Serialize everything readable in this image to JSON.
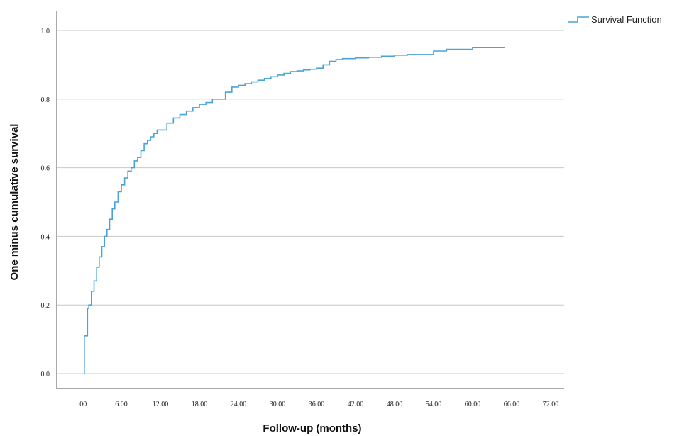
{
  "chart_data": {
    "type": "line",
    "title": "",
    "xlabel": "Follow-up (months)",
    "ylabel": "One minus cumulative survival",
    "xlim": [
      0,
      72
    ],
    "ylim": [
      0,
      1
    ],
    "x_ticks": [
      ".00",
      "6.00",
      "12.00",
      "18.00",
      "24.00",
      "30.00",
      "36.00",
      "42.00",
      "48.00",
      "54.00",
      "60.00",
      "66.00",
      "72.00"
    ],
    "y_ticks": [
      "0.0",
      "0.2",
      "0.4",
      "0.6",
      "0.8",
      "1.0"
    ],
    "grid": "horizontal",
    "legend_position": "top-right",
    "step": true,
    "series": [
      {
        "name": "Survival Function",
        "color": "#4aa3d4",
        "x": [
          0.3,
          0.3,
          0.8,
          1.0,
          1.4,
          1.8,
          2.2,
          2.6,
          3.0,
          3.4,
          3.8,
          4.2,
          4.6,
          5.0,
          5.5,
          6.0,
          6.5,
          7.0,
          7.5,
          8.0,
          8.5,
          9.0,
          9.5,
          10.0,
          10.5,
          11.0,
          11.5,
          12.0,
          13.0,
          14.0,
          15.0,
          16.0,
          17.0,
          18.0,
          19.0,
          20.0,
          21.0,
          22.0,
          23.0,
          24.0,
          25.0,
          26.0,
          27.0,
          28.0,
          29.0,
          30.0,
          31.0,
          32.0,
          33.0,
          34.0,
          35.0,
          36.0,
          37.0,
          38.0,
          39.0,
          40.0,
          42.0,
          44.0,
          46.0,
          48.0,
          50.0,
          52.0,
          54.0,
          56.0,
          58.0,
          60.0,
          62.0,
          64.0,
          65.0
        ],
        "y": [
          0.0,
          0.11,
          0.19,
          0.2,
          0.24,
          0.27,
          0.31,
          0.34,
          0.37,
          0.4,
          0.42,
          0.45,
          0.48,
          0.5,
          0.53,
          0.55,
          0.57,
          0.59,
          0.6,
          0.62,
          0.63,
          0.65,
          0.67,
          0.68,
          0.69,
          0.7,
          0.71,
          0.71,
          0.73,
          0.745,
          0.755,
          0.765,
          0.775,
          0.785,
          0.79,
          0.8,
          0.8,
          0.82,
          0.835,
          0.84,
          0.845,
          0.85,
          0.855,
          0.86,
          0.865,
          0.87,
          0.875,
          0.88,
          0.882,
          0.885,
          0.887,
          0.89,
          0.9,
          0.91,
          0.915,
          0.918,
          0.92,
          0.922,
          0.925,
          0.928,
          0.93,
          0.93,
          0.94,
          0.945,
          0.945,
          0.95,
          0.95,
          0.95,
          0.95
        ]
      }
    ]
  }
}
